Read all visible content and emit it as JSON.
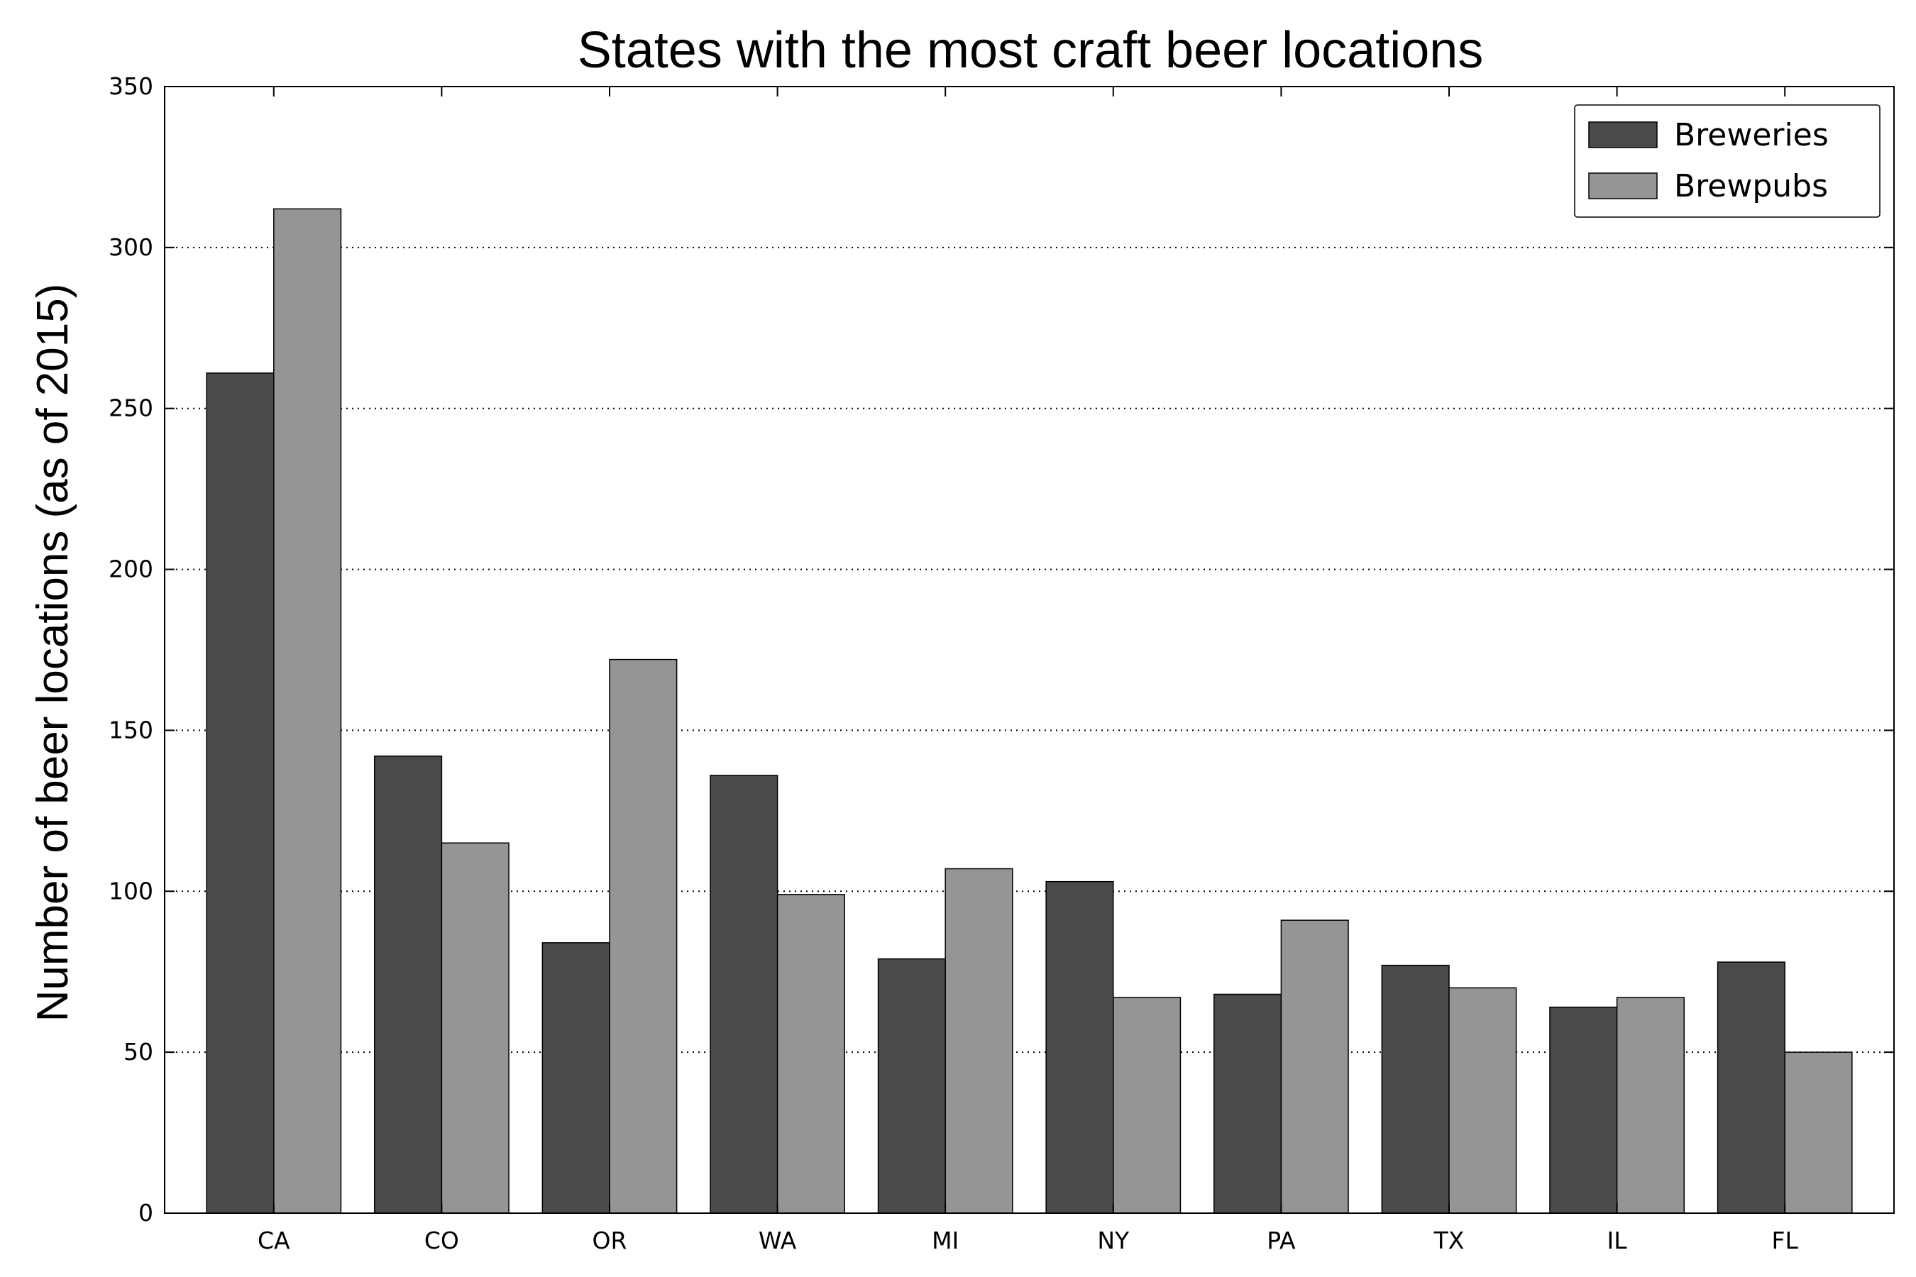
{
  "chart_data": {
    "type": "bar",
    "title": "States with the most craft beer locations",
    "xlabel": "",
    "ylabel": "Number of beer locations (as of 2015)",
    "categories": [
      "CA",
      "CO",
      "OR",
      "WA",
      "MI",
      "NY",
      "PA",
      "TX",
      "IL",
      "FL"
    ],
    "series": [
      {
        "name": "Breweries",
        "values": [
          261,
          142,
          84,
          136,
          79,
          103,
          68,
          77,
          64,
          78
        ],
        "color": "#4a4a4a"
      },
      {
        "name": "Brewpubs",
        "values": [
          312,
          115,
          172,
          99,
          107,
          67,
          91,
          70,
          67,
          50
        ],
        "color": "#959595"
      }
    ],
    "ylim": [
      0,
      350
    ],
    "yticks": [
      0,
      50,
      100,
      150,
      200,
      250,
      300,
      350
    ],
    "grid": "y-dotted",
    "legend": "top-right"
  }
}
